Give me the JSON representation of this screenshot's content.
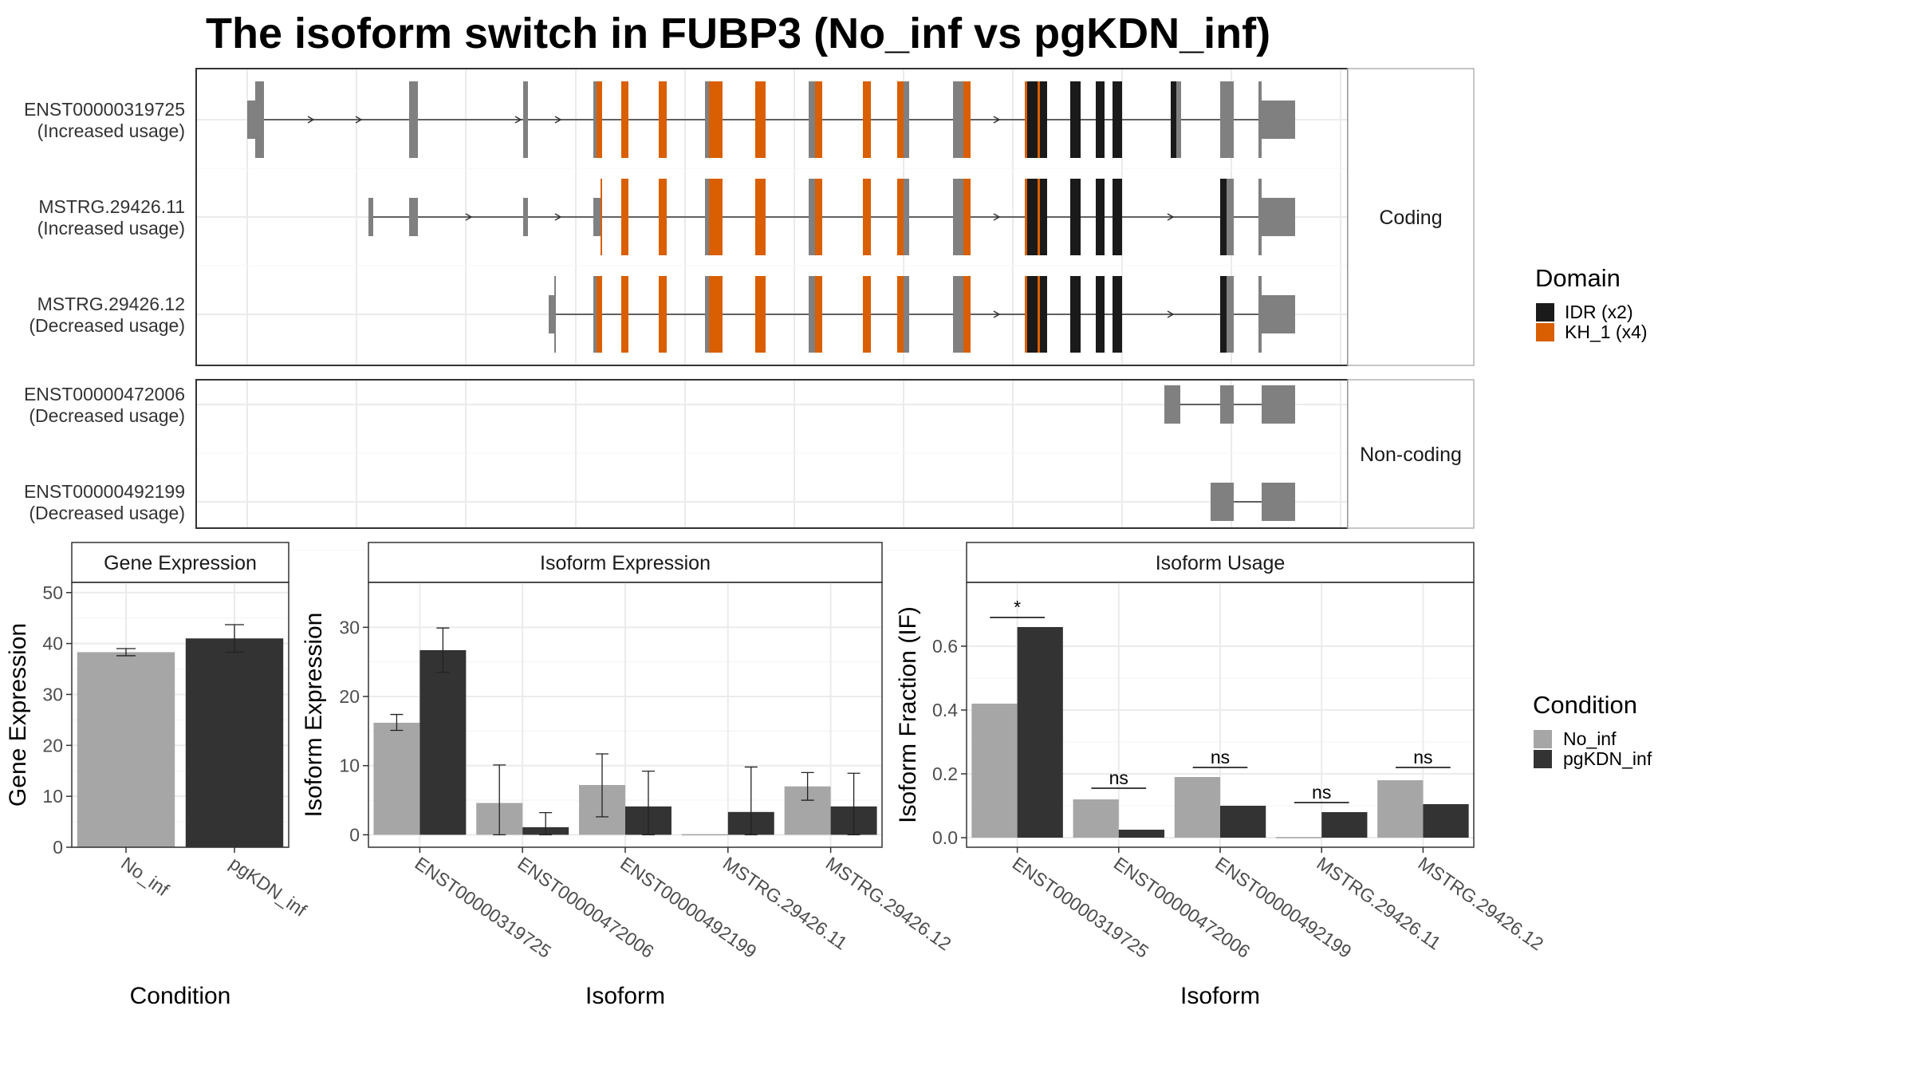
{
  "title": "The isoform switch in FUBP3 (No_inf vs pgKDN_inf)",
  "colors": {
    "utr": "#808080",
    "kh1": "#d95f02",
    "idr": "#1a1a1a",
    "no_inf": "#a6a6a6",
    "pgkdn_inf": "#333333",
    "grid": "#ebebeb",
    "panel_border": "#333333",
    "strip_border": "#b3b3b3"
  },
  "transcript_panels": [
    {
      "label": "Coding",
      "transcripts": [
        {
          "id": "ENST00000319725",
          "status": "(Increased usage)"
        },
        {
          "id": "MSTRG.29426.11",
          "status": "(Increased usage)"
        },
        {
          "id": "MSTRG.29426.12",
          "status": "(Decreased usage)"
        }
      ]
    },
    {
      "label": "Non-coding",
      "transcripts": [
        {
          "id": "ENST00000472006",
          "status": "(Decreased usage)"
        },
        {
          "id": "ENST00000492199",
          "status": "(Decreased usage)"
        }
      ]
    }
  ],
  "domain_legend": {
    "title": "Domain",
    "items": [
      {
        "label": "IDR (x2)",
        "color": "#1a1a1a"
      },
      {
        "label": "KH_1 (x4)",
        "color": "#d95f02"
      }
    ]
  },
  "condition_legend": {
    "title": "Condition",
    "items": [
      {
        "label": "No_inf",
        "color": "#a6a6a6"
      },
      {
        "label": "pgKDN_inf",
        "color": "#333333"
      }
    ]
  },
  "chart_data": [
    {
      "type": "bar",
      "title": "Gene Expression",
      "xlabel": "Condition",
      "ylabel": "Gene Expression",
      "categories": [
        "No_inf",
        "pgKDN_inf"
      ],
      "values": [
        38.3,
        41.0
      ],
      "error_low": [
        37.6,
        38.3
      ],
      "error_high": [
        39.0,
        43.7
      ],
      "ylim": [
        0,
        52
      ],
      "yticks": [
        0,
        10,
        20,
        30,
        40,
        50
      ]
    },
    {
      "type": "bar",
      "title": "Isoform Expression",
      "xlabel": "Isoform",
      "ylabel": "Isoform Expression",
      "categories": [
        "ENST00000319725",
        "ENST00000472006",
        "ENST00000492199",
        "MSTRG.29426.11",
        "MSTRG.29426.12"
      ],
      "series": [
        {
          "name": "No_inf",
          "values": [
            16.2,
            4.6,
            7.2,
            0.0,
            7.0
          ],
          "error_low": [
            15.1,
            0.0,
            2.6,
            0.0,
            5.0
          ],
          "error_high": [
            17.4,
            10.1,
            11.7,
            0.0,
            9.0
          ]
        },
        {
          "name": "pgKDN_inf",
          "values": [
            26.7,
            1.1,
            4.1,
            3.3,
            4.1
          ],
          "error_low": [
            23.5,
            0.0,
            0.0,
            0.0,
            0.0
          ],
          "error_high": [
            29.9,
            3.2,
            9.2,
            9.8,
            8.9
          ]
        }
      ],
      "ylim": [
        -1.8,
        36.5
      ],
      "yticks": [
        0,
        10,
        20,
        30
      ]
    },
    {
      "type": "bar",
      "title": "Isoform Usage",
      "xlabel": "Isoform",
      "ylabel": "Isoform Fraction (IF)",
      "categories": [
        "ENST00000319725",
        "ENST00000472006",
        "ENST00000492199",
        "MSTRG.29426.11",
        "MSTRG.29426.12"
      ],
      "series": [
        {
          "name": "No_inf",
          "values": [
            0.42,
            0.12,
            0.19,
            0.0,
            0.18
          ]
        },
        {
          "name": "pgKDN_inf",
          "values": [
            0.66,
            0.025,
            0.1,
            0.08,
            0.105
          ]
        }
      ],
      "significance": [
        "*",
        "ns",
        "ns",
        "ns",
        "ns"
      ],
      "significance_y": [
        0.69,
        0.155,
        0.22,
        0.11,
        0.22
      ],
      "ylim": [
        -0.03,
        0.8
      ],
      "yticks": [
        0.0,
        0.2,
        0.4,
        0.6
      ],
      "ytick_labels": [
        "0.0",
        "0.2",
        "0.4",
        "0.6"
      ]
    }
  ]
}
